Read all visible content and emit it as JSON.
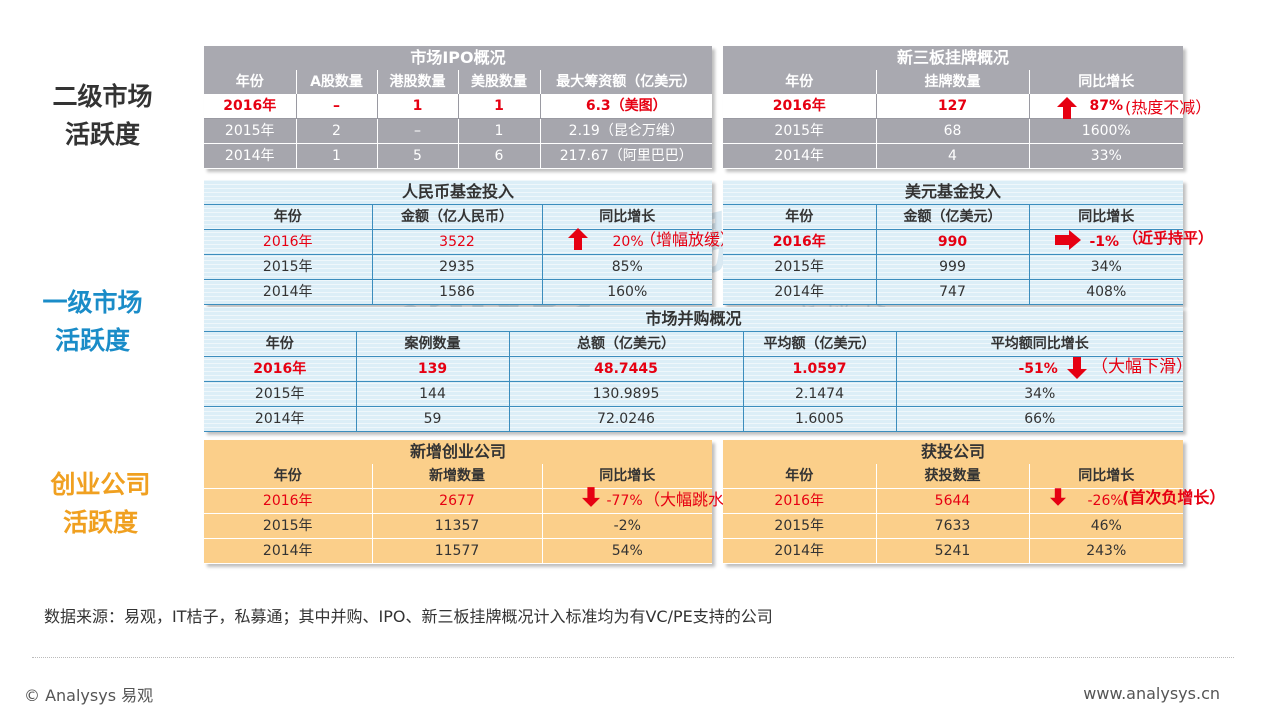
{
  "categories": {
    "secondary": [
      "二级市场",
      "活跃度"
    ],
    "primary": [
      "一级市场",
      "活跃度"
    ],
    "startup": [
      "创业公司",
      "活跃度"
    ]
  },
  "colors": {
    "secondary": "#333333",
    "primary": "#1a8cc8",
    "startup": "#f0a020",
    "accent_red": "#e60012"
  },
  "watermark": {
    "text": "analysys 易观",
    "sub": "实时分析 驱动用户资产成长"
  },
  "ipo": {
    "title": "市场IPO概况",
    "headers": [
      "年份",
      "A股数量",
      "港股数量",
      "美股数量",
      "最大筹资额（亿美元）"
    ],
    "rows": [
      [
        "2016年",
        "–",
        "1",
        "1",
        "6.3（美图）"
      ],
      [
        "2015年",
        "2",
        "–",
        "1",
        "2.19（昆仑万维）"
      ],
      [
        "2014年",
        "1",
        "5",
        "6",
        "217.67（阿里巴巴）"
      ]
    ]
  },
  "neeq": {
    "title": "新三板挂牌概况",
    "headers": [
      "年份",
      "挂牌数量",
      "同比增长"
    ],
    "rows": [
      [
        "2016年",
        "127",
        "87%"
      ],
      [
        "2015年",
        "68",
        "1600%"
      ],
      [
        "2014年",
        "4",
        "33%"
      ]
    ],
    "note": "(热度不减）",
    "icon": "arrow-up-icon"
  },
  "rmb": {
    "title": "人民币基金投入",
    "headers": [
      "年份",
      "金额（亿人民币）",
      "同比增长"
    ],
    "rows": [
      [
        "2016年",
        "3522",
        "20%"
      ],
      [
        "2015年",
        "2935",
        "85%"
      ],
      [
        "2014年",
        "1586",
        "160%"
      ]
    ],
    "note": "（增幅放缓）",
    "icon": "arrow-up-icon"
  },
  "usd": {
    "title": "美元基金投入",
    "headers": [
      "年份",
      "金额（亿美元）",
      "同比增长"
    ],
    "rows": [
      [
        "2016年",
        "990",
        "-1%"
      ],
      [
        "2015年",
        "999",
        "34%"
      ],
      [
        "2014年",
        "747",
        "408%"
      ]
    ],
    "note": "（近乎持平）",
    "icon": "arrow-right-icon"
  },
  "ma": {
    "title": "市场并购概况",
    "headers": [
      "年份",
      "案例数量",
      "总额（亿美元）",
      "平均额（亿美元）",
      "平均额同比增长"
    ],
    "rows": [
      [
        "2016年",
        "139",
        "48.7445",
        "1.0597",
        "-51%"
      ],
      [
        "2015年",
        "144",
        "130.9895",
        "2.1474",
        "34%"
      ],
      [
        "2014年",
        "59",
        "72.0246",
        "1.6005",
        "66%"
      ]
    ],
    "note": "（大幅下滑）",
    "icon": "arrow-down-icon"
  },
  "newco": {
    "title": "新增创业公司",
    "headers": [
      "年份",
      "新增数量",
      "同比增长"
    ],
    "rows": [
      [
        "2016年",
        "2677",
        "-77%"
      ],
      [
        "2015年",
        "11357",
        "-2%"
      ],
      [
        "2014年",
        "11577",
        "54%"
      ]
    ],
    "note": "（大幅跳水）",
    "icon": "arrow-down-icon"
  },
  "funded": {
    "title": "获投公司",
    "headers": [
      "年份",
      "获投数量",
      "同比增长"
    ],
    "rows": [
      [
        "2016年",
        "5644",
        "-26%"
      ],
      [
        "2015年",
        "7633",
        "46%"
      ],
      [
        "2014年",
        "5241",
        "243%"
      ]
    ],
    "note": "(首次负增长）",
    "icon": "arrow-down-icon"
  },
  "footer": {
    "source": "数据来源：易观，IT桔子，私募通；其中并购、IPO、新三板挂牌概况计入标准均为有VC/PE支持的公司",
    "copyright": "© Analysys 易观",
    "url": "www.analysys.cn"
  }
}
